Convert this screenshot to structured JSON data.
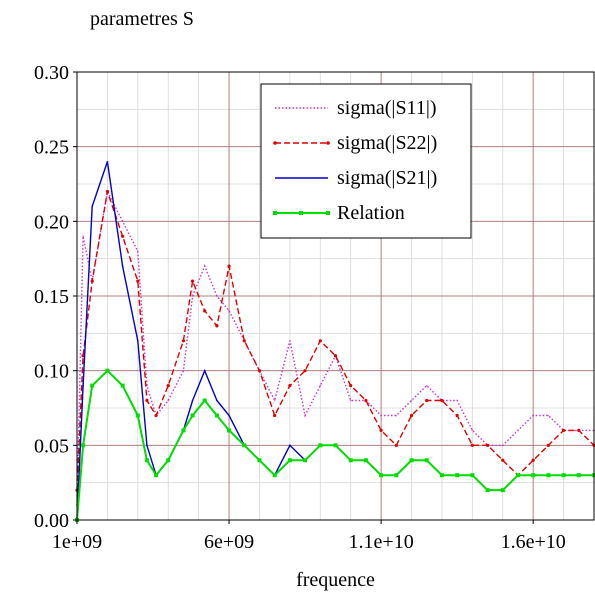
{
  "chart_data": {
    "type": "line",
    "title": "parametres S",
    "xlabel": "frequence",
    "ylabel": "",
    "xlim": [
      1000000000,
      18000000000
    ],
    "ylim": [
      0,
      0.3
    ],
    "x_ticks": [
      1000000000,
      6000000000,
      11000000000,
      16000000000
    ],
    "x_tick_labels": [
      "1e+09",
      "6e+09",
      "1.1e+10",
      "1.6e+10"
    ],
    "y_ticks": [
      0,
      0.05,
      0.1,
      0.15,
      0.2,
      0.25,
      0.3
    ],
    "y_tick_labels": [
      "0.00",
      "0.05",
      "0.10",
      "0.15",
      "0.20",
      "0.25",
      "0.30"
    ],
    "grid": true,
    "legend_position": "top-right",
    "series": [
      {
        "name": "sigma(|S11|)",
        "color": "#cc33cc",
        "style": "dotted",
        "x": [
          1000000000.0,
          1200000000.0,
          1500000000.0,
          2000000000.0,
          2500000000.0,
          3000000000.0,
          3300000000.0,
          3600000000.0,
          4000000000.0,
          4500000000.0,
          4800000000.0,
          5200000000.0,
          5600000000.0,
          6000000000.0,
          6500000000.0,
          7000000000.0,
          7500000000.0,
          8000000000.0,
          8500000000.0,
          9000000000.0,
          9500000000.0,
          10000000000.0,
          10500000000.0,
          11000000000.0,
          11500000000.0,
          12000000000.0,
          12500000000.0,
          13000000000.0,
          13500000000.0,
          14000000000.0,
          14500000000.0,
          15000000000.0,
          15500000000.0,
          16000000000.0,
          16500000000.0,
          17000000000.0,
          17500000000.0,
          18000000000.0
        ],
        "values": [
          0.01,
          0.19,
          0.16,
          0.22,
          0.2,
          0.18,
          0.09,
          0.07,
          0.08,
          0.1,
          0.15,
          0.17,
          0.15,
          0.14,
          0.12,
          0.1,
          0.08,
          0.12,
          0.07,
          0.09,
          0.11,
          0.08,
          0.08,
          0.07,
          0.07,
          0.08,
          0.09,
          0.08,
          0.08,
          0.06,
          0.05,
          0.05,
          0.06,
          0.07,
          0.07,
          0.06,
          0.06,
          0.06
        ]
      },
      {
        "name": "sigma(|S22|)",
        "color": "#e00000",
        "style": "dashed",
        "x": [
          1000000000.0,
          1200000000.0,
          1500000000.0,
          2000000000.0,
          2500000000.0,
          3000000000.0,
          3300000000.0,
          3600000000.0,
          4000000000.0,
          4500000000.0,
          4800000000.0,
          5200000000.0,
          5600000000.0,
          6000000000.0,
          6500000000.0,
          7000000000.0,
          7500000000.0,
          8000000000.0,
          8500000000.0,
          9000000000.0,
          9500000000.0,
          10000000000.0,
          10500000000.0,
          11000000000.0,
          11500000000.0,
          12000000000.0,
          12500000000.0,
          13000000000.0,
          13500000000.0,
          14000000000.0,
          14500000000.0,
          15000000000.0,
          15500000000.0,
          16000000000.0,
          16500000000.0,
          17000000000.0,
          17500000000.0,
          18000000000.0
        ],
        "values": [
          0.02,
          0.11,
          0.16,
          0.22,
          0.19,
          0.16,
          0.08,
          0.07,
          0.09,
          0.12,
          0.16,
          0.14,
          0.13,
          0.17,
          0.12,
          0.1,
          0.07,
          0.09,
          0.1,
          0.12,
          0.11,
          0.09,
          0.08,
          0.06,
          0.05,
          0.07,
          0.08,
          0.08,
          0.07,
          0.05,
          0.05,
          0.04,
          0.03,
          0.04,
          0.05,
          0.06,
          0.06,
          0.05
        ]
      },
      {
        "name": "sigma(|S21|)",
        "color": "#0000cc",
        "style": "solid",
        "x": [
          1000000000.0,
          1200000000.0,
          1500000000.0,
          2000000000.0,
          2500000000.0,
          3000000000.0,
          3300000000.0,
          3600000000.0,
          4000000000.0,
          4500000000.0,
          4800000000.0,
          5200000000.0,
          5600000000.0,
          6000000000.0,
          6500000000.0,
          7000000000.0,
          7500000000.0,
          8000000000.0,
          8500000000.0,
          9000000000.0,
          9500000000.0,
          10000000000.0,
          10500000000.0,
          11000000000.0,
          11500000000.0,
          12000000000.0,
          12500000000.0,
          13000000000.0,
          13500000000.0,
          14000000000.0,
          14500000000.0,
          15000000000.0,
          15500000000.0,
          16000000000.0,
          16500000000.0,
          17000000000.0,
          17500000000.0,
          18000000000.0
        ],
        "values": [
          0.0,
          0.09,
          0.21,
          0.24,
          0.17,
          0.12,
          0.05,
          0.03,
          0.04,
          0.06,
          0.08,
          0.1,
          0.08,
          0.07,
          0.05,
          0.04,
          0.03,
          0.05,
          0.04,
          0.05,
          0.05,
          0.04,
          0.04,
          0.03,
          0.03,
          0.04,
          0.04,
          0.03,
          0.03,
          0.03,
          0.02,
          0.02,
          0.03,
          0.03,
          0.03,
          0.03,
          0.03,
          0.03
        ]
      },
      {
        "name": "Relation",
        "color": "#00dd00",
        "style": "solid-markers",
        "x": [
          1000000000.0,
          1200000000.0,
          1500000000.0,
          2000000000.0,
          2500000000.0,
          3000000000.0,
          3300000000.0,
          3600000000.0,
          4000000000.0,
          4500000000.0,
          4800000000.0,
          5200000000.0,
          5600000000.0,
          6000000000.0,
          6500000000.0,
          7000000000.0,
          7500000000.0,
          8000000000.0,
          8500000000.0,
          9000000000.0,
          9500000000.0,
          10000000000.0,
          10500000000.0,
          11000000000.0,
          11500000000.0,
          12000000000.0,
          12500000000.0,
          13000000000.0,
          13500000000.0,
          14000000000.0,
          14500000000.0,
          15000000000.0,
          15500000000.0,
          16000000000.0,
          16500000000.0,
          17000000000.0,
          17500000000.0,
          18000000000.0
        ],
        "values": [
          0.0,
          0.05,
          0.09,
          0.1,
          0.09,
          0.07,
          0.04,
          0.03,
          0.04,
          0.06,
          0.07,
          0.08,
          0.07,
          0.06,
          0.05,
          0.04,
          0.03,
          0.04,
          0.04,
          0.05,
          0.05,
          0.04,
          0.04,
          0.03,
          0.03,
          0.04,
          0.04,
          0.03,
          0.03,
          0.03,
          0.02,
          0.02,
          0.03,
          0.03,
          0.03,
          0.03,
          0.03,
          0.03
        ]
      }
    ]
  }
}
